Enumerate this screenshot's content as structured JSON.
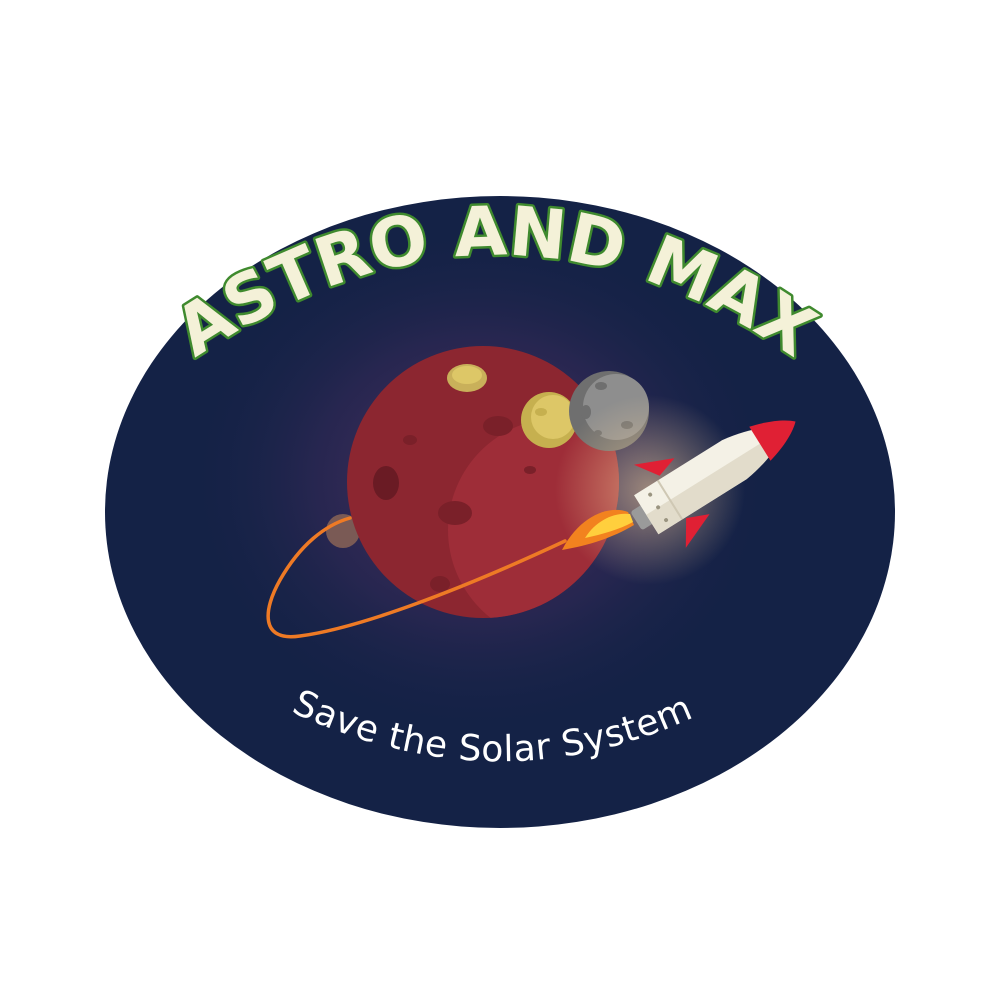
{
  "logo": {
    "title": "ASTRO AND MAX",
    "tagline": "Save the Solar System",
    "colors": {
      "background": "#ffffff",
      "badge": "#142246",
      "planet": "#8c2630",
      "orbit": "#ee7a25",
      "moon_yellow": "#d7c05c",
      "moon_grey": "#8e8e8e",
      "rocket_body": "#f4f1e6",
      "rocket_accent": "#e02034",
      "title_fill": "#f4f1d8",
      "title_outline": "#3f8a2e"
    }
  }
}
